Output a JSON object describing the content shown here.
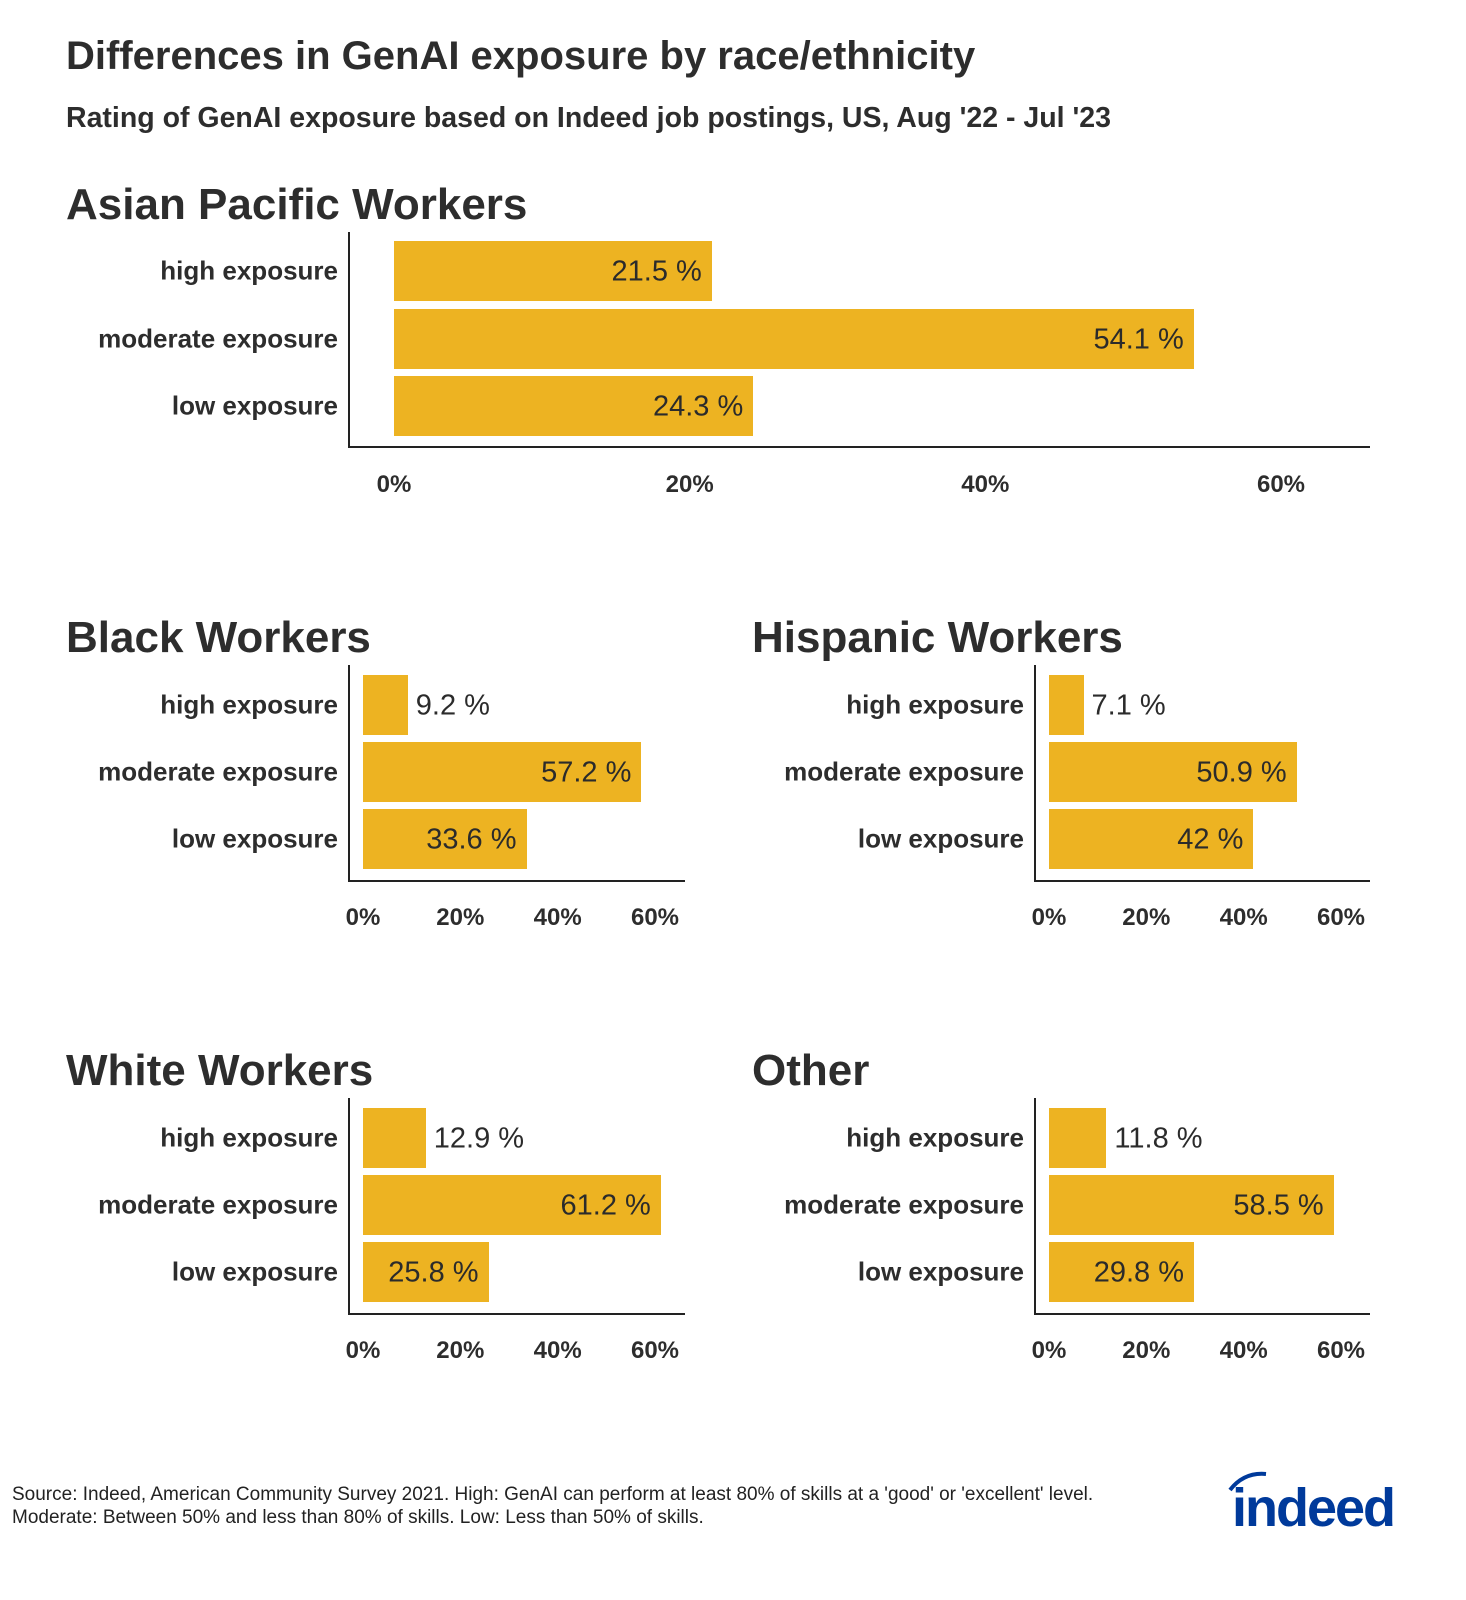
{
  "title": "Differences in GenAI exposure by race/ethnicity",
  "subtitle": "Rating of GenAI exposure based on Indeed job postings, US, Aug '22 - Jul '23",
  "footer": "Source: Indeed, American Community Survey 2021. High: GenAI can perform at least 80% of skills at a 'good' or 'excellent' level. Moderate: Between 50% and less than 80% of skills. Low: Less than 50% of skills.",
  "logo": {
    "text": "indeed",
    "color": "#003a9b"
  },
  "bar_color": "#edb322",
  "chart_data": [
    {
      "type": "bar",
      "orientation": "horizontal",
      "title": "Asian Pacific Workers",
      "categories": [
        "high exposure",
        "moderate exposure",
        "low exposure"
      ],
      "values": [
        21.5,
        54.1,
        24.3
      ],
      "labels": [
        "21.5 %",
        "54.1 %",
        "24.3 %"
      ],
      "xlim": [
        0,
        60
      ],
      "ticks": [
        "0%",
        "20%",
        "40%",
        "60%"
      ]
    },
    {
      "type": "bar",
      "orientation": "horizontal",
      "title": "Black Workers",
      "categories": [
        "high exposure",
        "moderate exposure",
        "low exposure"
      ],
      "values": [
        9.2,
        57.2,
        33.6
      ],
      "labels": [
        "9.2 %",
        "57.2 %",
        "33.6 %"
      ],
      "xlim": [
        0,
        60
      ],
      "ticks": [
        "0%",
        "20%",
        "40%",
        "60%"
      ]
    },
    {
      "type": "bar",
      "orientation": "horizontal",
      "title": "Hispanic Workers",
      "categories": [
        "high exposure",
        "moderate exposure",
        "low exposure"
      ],
      "values": [
        7.1,
        50.9,
        42
      ],
      "labels": [
        "7.1 %",
        "50.9 %",
        "42 %"
      ],
      "xlim": [
        0,
        60
      ],
      "ticks": [
        "0%",
        "20%",
        "40%",
        "60%"
      ]
    },
    {
      "type": "bar",
      "orientation": "horizontal",
      "title": "White Workers",
      "categories": [
        "high exposure",
        "moderate exposure",
        "low exposure"
      ],
      "values": [
        12.9,
        61.2,
        25.8
      ],
      "labels": [
        "12.9 %",
        "61.2 %",
        "25.8 %"
      ],
      "xlim": [
        0,
        60
      ],
      "ticks": [
        "0%",
        "20%",
        "40%",
        "60%"
      ]
    },
    {
      "type": "bar",
      "orientation": "horizontal",
      "title": "Other",
      "categories": [
        "high exposure",
        "moderate exposure",
        "low exposure"
      ],
      "values": [
        11.8,
        58.5,
        29.8
      ],
      "labels": [
        "11.8 %",
        "58.5 %",
        "29.8 %"
      ],
      "xlim": [
        0,
        60
      ],
      "ticks": [
        "0%",
        "20%",
        "40%",
        "60%"
      ]
    }
  ]
}
